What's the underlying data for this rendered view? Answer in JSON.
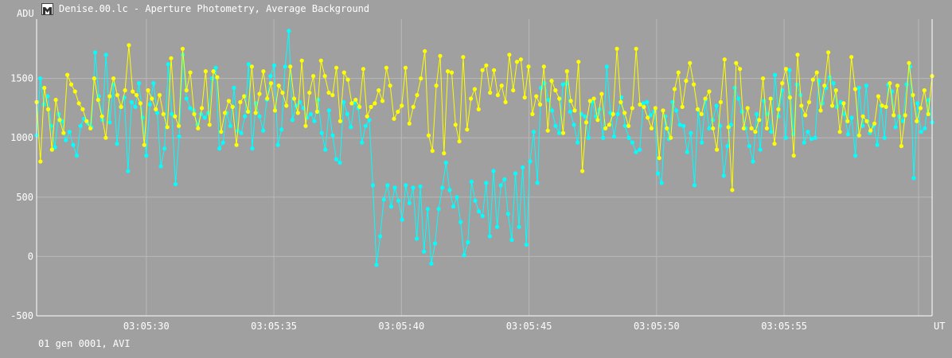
{
  "window": {
    "title": "Denise.00.lc - Aperture Photometry, Average Background",
    "icon": "lightcurve-app-icon"
  },
  "footer": {
    "status": "01 gen 0001, AVI"
  },
  "chart_data": {
    "type": "line",
    "ylabel": "ADU",
    "xlabel": "UT",
    "ylim": [
      -500,
      2000
    ],
    "y_ticks": [
      -500,
      0,
      500,
      1000,
      1500
    ],
    "y_tick_labels": [
      "-500",
      "0",
      "500",
      "1000",
      "1500"
    ],
    "xlim": [
      "03:05:25.7",
      "03:06:00.8"
    ],
    "x_tick_seconds": [
      30,
      35,
      40,
      45,
      50,
      55
    ],
    "x_tick_labels": [
      "03:05:30",
      "03:05:35",
      "03:05:40",
      "03:05:45",
      "03:05:50",
      "03:05:55"
    ],
    "grid": true,
    "colors": {
      "background": "#a0a0a0",
      "grid": "#b8b8b8",
      "axis": "#ffffff",
      "text": "#ffffff"
    },
    "series": [
      {
        "color": "#00ffff",
        "x_start": "03:05:25.7",
        "x_end": "03:06:00.8",
        "values": [
          1020,
          1500,
          1280,
          1350,
          1100,
          920,
          1200,
          1140,
          980,
          1050,
          940,
          850,
          1100,
          1160,
          1120,
          1090,
          1720,
          1350,
          1150,
          1700,
          1130,
          1450,
          950,
          1260,
          1340,
          720,
          1300,
          1260,
          1460,
          1170,
          850,
          1280,
          1460,
          1210,
          760,
          910,
          1620,
          1200,
          610,
          1010,
          1700,
          1330,
          1250,
          1230,
          1110,
          1200,
          1170,
          1210,
          1500,
          1590,
          910,
          960,
          1210,
          1100,
          1420,
          1060,
          1040,
          1180,
          1620,
          910,
          1290,
          1180,
          1060,
          1320,
          1520,
          1610,
          940,
          1070,
          1600,
          1900,
          1150,
          1270,
          1300,
          1250,
          1170,
          1200,
          1140,
          1320,
          1040,
          900,
          1230,
          1020,
          820,
          790,
          1300,
          1200,
          1090,
          1300,
          1250,
          960,
          1100,
          1150,
          600,
          -70,
          170,
          480,
          600,
          420,
          580,
          470,
          310,
          600,
          450,
          580,
          150,
          590,
          40,
          400,
          -60,
          110,
          400,
          580,
          790,
          560,
          420,
          500,
          290,
          10,
          120,
          630,
          470,
          380,
          340,
          620,
          170,
          720,
          250,
          600,
          650,
          360,
          140,
          700,
          250,
          750,
          100,
          800,
          1050,
          620,
          1420,
          1460,
          1320,
          1230,
          1100,
          1040,
          1450,
          1460,
          1220,
          1110,
          960,
          1200,
          1180,
          1000,
          1300,
          1180,
          1240,
          1000,
          1600,
          1210,
          1010,
          1200,
          1340,
          1100,
          1000,
          960,
          880,
          900,
          1290,
          1300,
          1190,
          1220,
          700,
          620,
          1180,
          990,
          1300,
          1230,
          1110,
          1100,
          880,
          1040,
          600,
          1240,
          960,
          1320,
          1080,
          1150,
          1270,
          1100,
          680,
          930,
          1110,
          1420,
          1330,
          1220,
          1080,
          930,
          800,
          1200,
          900,
          1310,
          1200,
          1050,
          1530,
          1180,
          1400,
          1000,
          1570,
          1030,
          1450,
          1360,
          960,
          1050,
          990,
          1000,
          1480,
          1290,
          1420,
          1510,
          1460,
          1260,
          1300,
          1200,
          1030,
          1170,
          850,
          1420,
          1100,
          1440,
          1040,
          1100,
          940,
          1270,
          1000,
          1450,
          1390,
          1090,
          1180,
          1140,
          1450,
          1600,
          660,
          1290,
          1050,
          1080,
          1320,
          1130
        ]
      },
      {
        "color": "#ffff00",
        "x_start": "03:05:25.7",
        "x_end": "03:06:00.8",
        "values": [
          1300,
          800,
          1420,
          1240,
          900,
          1320,
          1150,
          1040,
          1530,
          1450,
          1390,
          1290,
          1240,
          1140,
          1080,
          1500,
          1320,
          1180,
          1000,
          1350,
          1500,
          1360,
          1260,
          1400,
          1780,
          1390,
          1360,
          1290,
          940,
          1400,
          1330,
          1240,
          1360,
          1200,
          1090,
          1670,
          1180,
          1100,
          1750,
          1400,
          1550,
          1200,
          1080,
          1250,
          1560,
          1110,
          1560,
          1510,
          1050,
          1210,
          1310,
          1260,
          940,
          1300,
          1350,
          1220,
          1600,
          1210,
          1370,
          1560,
          1330,
          1460,
          1230,
          1440,
          1380,
          1270,
          1600,
          1330,
          1210,
          1650,
          1100,
          1380,
          1520,
          1220,
          1650,
          1520,
          1380,
          1360,
          1590,
          1140,
          1550,
          1490,
          1290,
          1320,
          1260,
          1580,
          1180,
          1260,
          1290,
          1400,
          1310,
          1590,
          1440,
          1160,
          1220,
          1270,
          1590,
          1120,
          1260,
          1360,
          1500,
          1730,
          1020,
          890,
          1440,
          1690,
          870,
          1560,
          1550,
          1110,
          970,
          1680,
          1070,
          1330,
          1410,
          1240,
          1570,
          1610,
          1380,
          1570,
          1360,
          1440,
          1300,
          1700,
          1400,
          1640,
          1660,
          1340,
          1600,
          1200,
          1350,
          1280,
          1600,
          1060,
          1480,
          1400,
          1330,
          1040,
          1560,
          1310,
          1230,
          1640,
          720,
          1130,
          1310,
          1330,
          1150,
          1370,
          1080,
          1110,
          1200,
          1750,
          1300,
          1210,
          1100,
          1250,
          1750,
          1280,
          1260,
          1170,
          1080,
          1250,
          830,
          1230,
          1080,
          1000,
          1410,
          1550,
          1260,
          1480,
          1630,
          1450,
          1240,
          1200,
          1330,
          1390,
          1080,
          900,
          1300,
          1660,
          1090,
          560,
          1630,
          1580,
          1080,
          1250,
          1080,
          1050,
          1150,
          1500,
          1080,
          1330,
          950,
          1240,
          1460,
          1580,
          1340,
          850,
          1700,
          1270,
          1190,
          1300,
          1490,
          1550,
          1230,
          1440,
          1720,
          1270,
          1400,
          1050,
          1290,
          1140,
          1680,
          1410,
          1020,
          1180,
          1140,
          1060,
          1120,
          1350,
          1270,
          1260,
          1460,
          1190,
          1440,
          930,
          1190,
          1630,
          1360,
          1140,
          1250,
          1400,
          1200,
          1520
        ]
      }
    ]
  }
}
